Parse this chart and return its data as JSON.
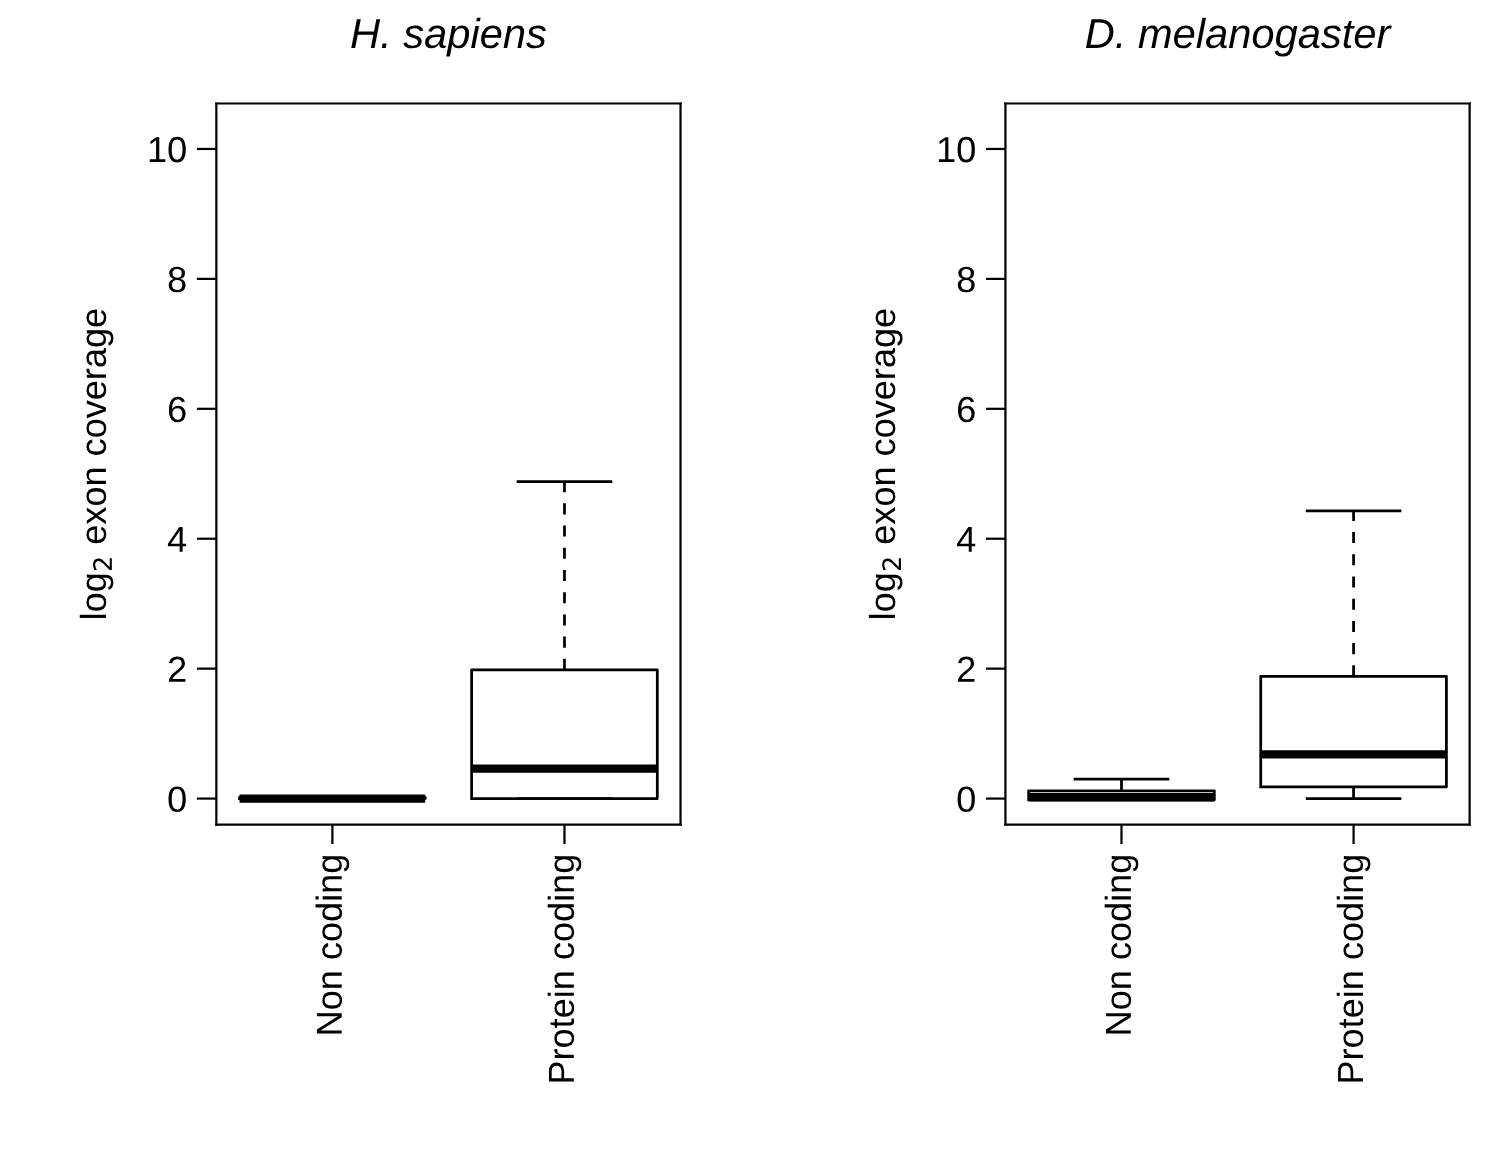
{
  "chart_data": [
    {
      "type": "box",
      "title": "H. sapiens",
      "ylabel": "log$_{2}$ exon coverage",
      "categories": [
        "Non coding",
        "Protein coding"
      ],
      "ylim": [
        -0.4,
        10.7
      ],
      "yticks": [
        0,
        2,
        4,
        6,
        8,
        10
      ],
      "grid": false,
      "boxes": [
        {
          "low": 0,
          "q1": 0,
          "median": 0,
          "q3": 0.02,
          "high": 0.02
        },
        {
          "low": 0,
          "q1": 0,
          "median": 0.46,
          "q3": 1.98,
          "high": 4.88
        }
      ]
    },
    {
      "type": "box",
      "title": "D. melanogaster",
      "ylabel": "log$_{2}$ exon coverage",
      "categories": [
        "Non coding",
        "Protein coding"
      ],
      "ylim": [
        -0.4,
        10.7
      ],
      "yticks": [
        0,
        2,
        4,
        6,
        8,
        10
      ],
      "grid": false,
      "boxes": [
        {
          "low": 0,
          "q1": -0.02,
          "median": 0.02,
          "q3": 0.12,
          "high": 0.3
        },
        {
          "low": 0,
          "q1": 0.18,
          "median": 0.68,
          "q3": 1.88,
          "high": 4.43
        }
      ]
    }
  ]
}
